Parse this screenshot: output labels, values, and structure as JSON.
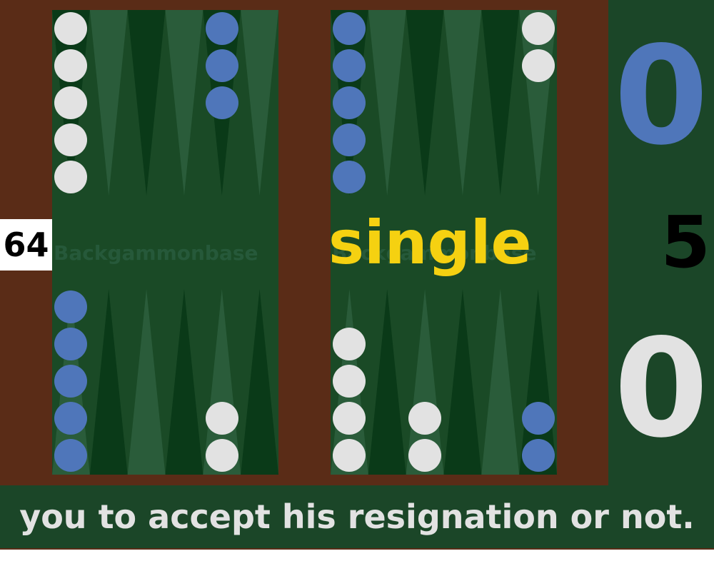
{
  "board": {
    "watermark": "Backgammonbase",
    "colors": {
      "frame": "#5a2c17",
      "felt": "#1a4a26",
      "point_light": "#2a5c3a",
      "point_dark": "#0a3a18",
      "white_checker": "#e2e2e2",
      "blue_checker": "#4f76ba"
    },
    "checkers": {
      "top_left": [
        {
          "point": 1,
          "color": "white",
          "count": 5
        },
        {
          "point": 5,
          "color": "blue",
          "count": 3
        }
      ],
      "top_right": [
        {
          "point": 1,
          "color": "blue",
          "count": 5
        },
        {
          "point": 6,
          "color": "white",
          "count": 2
        }
      ],
      "bottom_left": [
        {
          "point": 1,
          "color": "blue",
          "count": 5
        },
        {
          "point": 5,
          "color": "white",
          "count": 2
        }
      ],
      "bottom_right": [
        {
          "point": 1,
          "color": "white",
          "count": 4
        },
        {
          "point": 3,
          "color": "white",
          "count": 2
        },
        {
          "point": 6,
          "color": "blue",
          "count": 2
        }
      ]
    }
  },
  "cube": {
    "value": "64"
  },
  "resign_offer": {
    "label": "single"
  },
  "scores": {
    "top": "0",
    "match_length": "5",
    "bottom": "0"
  },
  "message": {
    "text": "you to accept his resignation or not."
  }
}
